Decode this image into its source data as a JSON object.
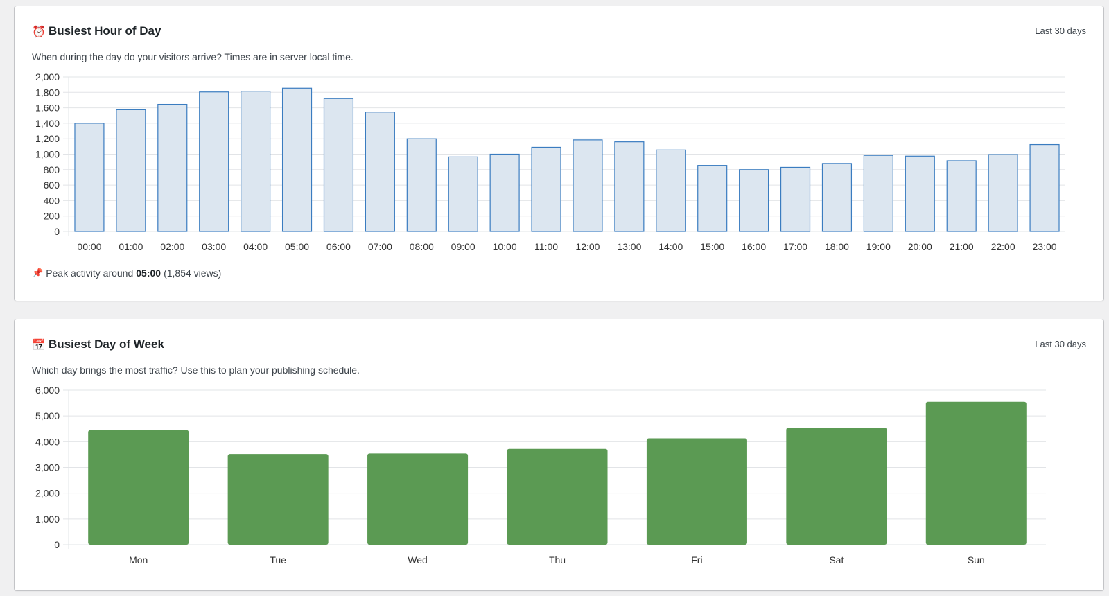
{
  "hour_card": {
    "title": "Busiest Hour of Day",
    "title_icon": "alarm-clock-icon",
    "range": "Last 30 days",
    "description": "When during the day do your visitors arrive? Times are in server local time.",
    "peak": {
      "prefix": "Peak activity around",
      "time": "05:00",
      "suffix": "(1,854 views)"
    }
  },
  "day_card": {
    "title": "Busiest Day of Week",
    "title_icon": "calendar-icon",
    "range": "Last 30 days",
    "description": "Which day brings the most traffic? Use this to plan your publishing schedule."
  },
  "colors": {
    "hour_bar_fill": "#dce6f0",
    "hour_bar_stroke": "#3a7cc0",
    "day_bar_fill": "#5b9a53",
    "grid": "#e2e4e7"
  },
  "chart_data": [
    {
      "type": "bar",
      "title": "Busiest Hour of Day",
      "categories": [
        "00:00",
        "01:00",
        "02:00",
        "03:00",
        "04:00",
        "05:00",
        "06:00",
        "07:00",
        "08:00",
        "09:00",
        "10:00",
        "11:00",
        "12:00",
        "13:00",
        "14:00",
        "15:00",
        "16:00",
        "17:00",
        "18:00",
        "19:00",
        "20:00",
        "21:00",
        "22:00",
        "23:00"
      ],
      "values": [
        1400,
        1575,
        1645,
        1805,
        1815,
        1854,
        1720,
        1545,
        1200,
        965,
        1000,
        1090,
        1185,
        1160,
        1055,
        855,
        800,
        830,
        880,
        985,
        975,
        915,
        995,
        1125
      ],
      "yticks": [
        "0",
        "200",
        "400",
        "600",
        "800",
        "1,000",
        "1,200",
        "1,400",
        "1,600",
        "1,800",
        "2,000"
      ],
      "ylim": [
        0,
        2000
      ],
      "grid": true
    },
    {
      "type": "bar",
      "title": "Busiest Day of Week",
      "categories": [
        "Mon",
        "Tue",
        "Wed",
        "Thu",
        "Fri",
        "Sat",
        "Sun"
      ],
      "values": [
        4450,
        3520,
        3540,
        3720,
        4130,
        4540,
        5550
      ],
      "yticks": [
        "0",
        "1,000",
        "2,000",
        "3,000",
        "4,000",
        "5,000",
        "6,000"
      ],
      "ylim": [
        0,
        6000
      ],
      "grid": true
    }
  ]
}
